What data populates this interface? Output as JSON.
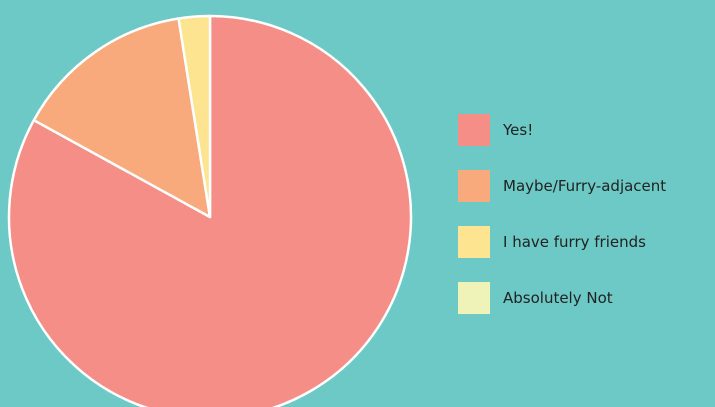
{
  "background_color": "#6cc9c5",
  "chart_data": {
    "type": "pie",
    "slices": [
      {
        "label": "Yes!",
        "value": 83,
        "color": "#f48e87"
      },
      {
        "label": "Maybe/Furry-adjacent",
        "value": 14.5,
        "color": "#f8aa7c"
      },
      {
        "label": "I have furry friends",
        "value": 2.5,
        "color": "#fde491"
      },
      {
        "label": "Absolutely Not",
        "value": 0,
        "color": "#eff3b8"
      }
    ],
    "legend_position": "right",
    "slice_border_color": "#ffffff"
  }
}
